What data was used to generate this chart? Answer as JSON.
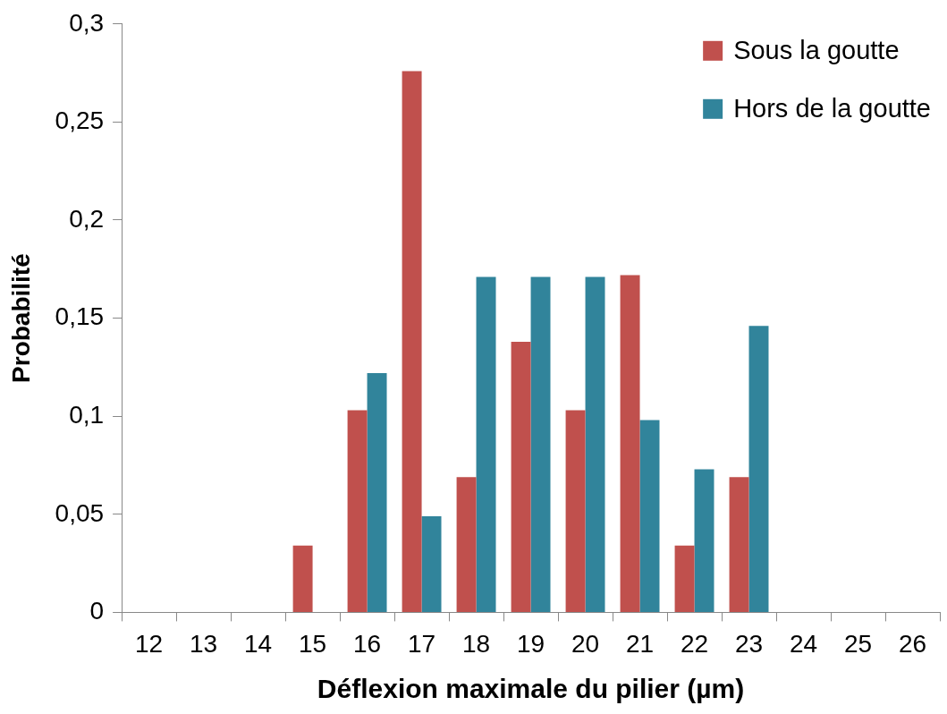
{
  "chart_data": {
    "type": "bar",
    "xlabel": "Déflexion maximale du pilier (µm)",
    "ylabel": "Probabilité",
    "categories": [
      "12",
      "13",
      "14",
      "15",
      "16",
      "17",
      "18",
      "19",
      "20",
      "21",
      "22",
      "23",
      "24",
      "25",
      "26"
    ],
    "series": [
      {
        "name": "Sous la goutte",
        "color": "#c0504d",
        "values": [
          null,
          null,
          null,
          0.034,
          0.103,
          0.276,
          0.069,
          0.138,
          0.103,
          0.172,
          0.034,
          0.069,
          null,
          null,
          null
        ]
      },
      {
        "name": "Hors de la goutte",
        "color": "#31849b",
        "values": [
          null,
          null,
          null,
          null,
          0.122,
          0.049,
          0.171,
          0.171,
          0.171,
          0.098,
          0.073,
          0.146,
          null,
          null,
          null
        ]
      }
    ],
    "ylim": [
      0,
      0.3
    ],
    "yticks": [
      0,
      {
        "value": 0.05,
        "label": "0,05"
      },
      {
        "value": 0.1,
        "label": "0,1"
      },
      {
        "value": 0.15,
        "label": "0,15"
      },
      {
        "value": 0.2,
        "label": "0,2"
      },
      {
        "value": 0.25,
        "label": "0,25"
      },
      {
        "value": 0.3,
        "label": "0,3"
      }
    ],
    "grid": false,
    "legend": "top right"
  }
}
